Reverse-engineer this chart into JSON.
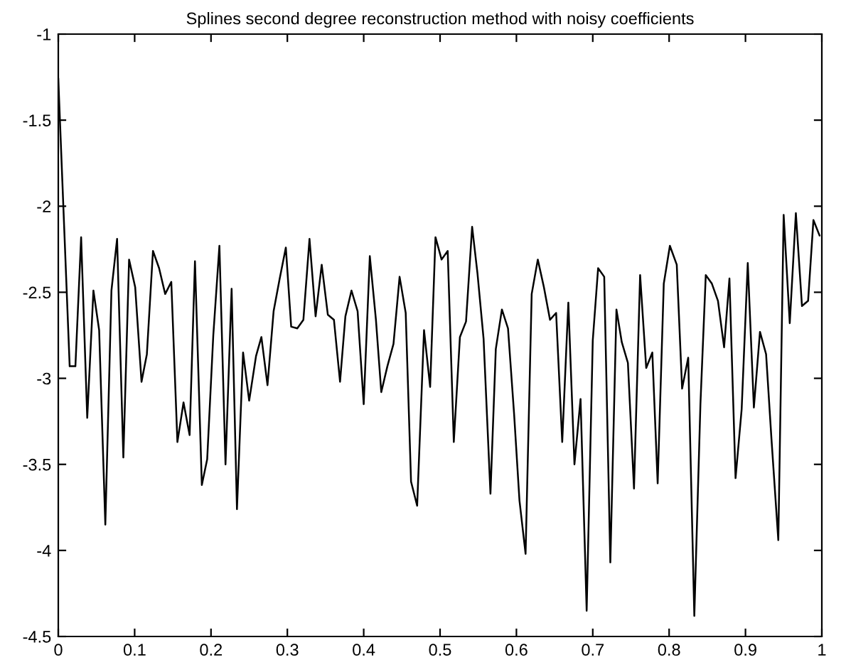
{
  "chart_data": {
    "type": "line",
    "title": "Splines second degree reconstruction method with noisy coefficients",
    "series": [
      {
        "color": "#000000",
        "x": [
          0,
          0.0149,
          0.0224,
          0.0299,
          0.0379,
          0.046,
          0.0535,
          0.0616,
          0.0696,
          0.077,
          0.0852,
          0.0927,
          0.1007,
          0.109,
          0.116,
          0.124,
          0.132,
          0.14,
          0.148,
          0.156,
          0.164,
          0.172,
          0.179,
          0.188,
          0.195,
          0.203,
          0.211,
          0.219,
          0.227,
          0.234,
          0.242,
          0.25,
          0.259,
          0.266,
          0.274,
          0.282,
          0.29,
          0.298,
          0.305,
          0.313,
          0.321,
          0.329,
          0.337,
          0.345,
          0.353,
          0.361,
          0.369,
          0.376,
          0.384,
          0.392,
          0.4,
          0.408,
          0.416,
          0.423,
          0.431,
          0.439,
          0.447,
          0.455,
          0.462,
          0.47,
          0.479,
          0.487,
          0.494,
          0.502,
          0.51,
          0.518,
          0.526,
          0.534,
          0.542,
          0.549,
          0.557,
          0.566,
          0.573,
          0.581,
          0.589,
          0.597,
          0.604,
          0.612,
          0.62,
          0.628,
          0.636,
          0.644,
          0.652,
          0.66,
          0.668,
          0.676,
          0.684,
          0.692,
          0.7,
          0.707,
          0.715,
          0.723,
          0.731,
          0.738,
          0.746,
          0.754,
          0.762,
          0.77,
          0.778,
          0.785,
          0.793,
          0.801,
          0.81,
          0.817,
          0.825,
          0.833,
          0.841,
          0.848,
          0.856,
          0.864,
          0.872,
          0.879,
          0.887,
          0.895,
          0.903,
          0.911,
          0.919,
          0.927,
          0.934,
          0.943,
          0.95,
          0.958,
          0.966,
          0.974,
          0.982,
          0.989,
          0.997
        ],
        "values": [
          -1.26,
          -2.93,
          -2.93,
          -2.18,
          -3.23,
          -2.49,
          -2.72,
          -3.85,
          -2.49,
          -2.19,
          -3.46,
          -2.31,
          -2.47,
          -3.02,
          -2.86,
          -2.26,
          -2.36,
          -2.51,
          -2.44,
          -3.37,
          -3.14,
          -3.33,
          -2.32,
          -3.62,
          -3.47,
          -2.75,
          -2.23,
          -3.5,
          -2.48,
          -3.76,
          -2.85,
          -3.13,
          -2.87,
          -2.76,
          -3.04,
          -2.61,
          -2.42,
          -2.24,
          -2.7,
          -2.71,
          -2.66,
          -2.19,
          -2.64,
          -2.34,
          -2.63,
          -2.66,
          -3.02,
          -2.64,
          -2.49,
          -2.61,
          -3.15,
          -2.29,
          -2.66,
          -3.08,
          -2.93,
          -2.8,
          -2.41,
          -2.62,
          -3.6,
          -3.74,
          -2.72,
          -3.05,
          -2.18,
          -2.31,
          -2.26,
          -3.37,
          -2.76,
          -2.67,
          -2.12,
          -2.39,
          -2.77,
          -3.67,
          -2.83,
          -2.6,
          -2.71,
          -3.21,
          -3.71,
          -4.02,
          -2.51,
          -2.31,
          -2.47,
          -2.66,
          -2.62,
          -3.37,
          -2.56,
          -3.5,
          -3.12,
          -4.35,
          -2.78,
          -2.36,
          -2.41,
          -4.07,
          -2.6,
          -2.79,
          -2.91,
          -3.64,
          -2.4,
          -2.94,
          -2.85,
          -3.61,
          -2.45,
          -2.23,
          -2.34,
          -3.06,
          -2.88,
          -4.38,
          -3.15,
          -2.4,
          -2.45,
          -2.55,
          -2.82,
          -2.42,
          -3.58,
          -3.18,
          -2.33,
          -3.17,
          -2.73,
          -2.86,
          -3.35,
          -3.94,
          -2.05,
          -2.68,
          -2.04,
          -2.58,
          -2.55,
          -2.08,
          -2.17
        ]
      }
    ],
    "xlim": [
      0,
      1
    ],
    "xticks": [
      0,
      0.1,
      0.2,
      0.3,
      0.4,
      0.5,
      0.6,
      0.7,
      0.8,
      0.9,
      1
    ],
    "ylim": [
      -4.5,
      -1
    ],
    "yticks": [
      -4.5,
      -4,
      -3.5,
      -3,
      -2.5,
      -2,
      -1.5,
      -1
    ],
    "grid": false
  }
}
